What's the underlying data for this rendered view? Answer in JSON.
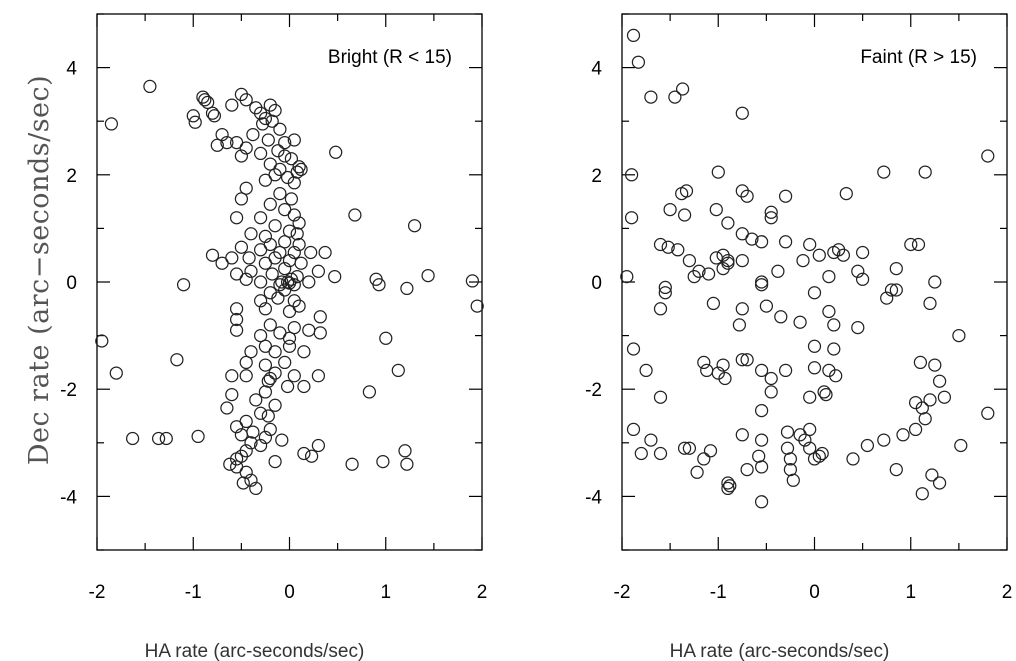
{
  "figure": {
    "ylabel": "Dec rate (arc−seconds/sec)"
  },
  "chart_data": [
    {
      "type": "scatter",
      "title": "Bright (R < 15)",
      "xlabel": "HA rate (arc-seconds/sec)",
      "ylabel": "Dec rate (arc−seconds/sec)",
      "xlim": [
        -2,
        2
      ],
      "ylim": [
        -5,
        5
      ],
      "xticks": [
        "-2",
        "-1",
        "0",
        "1",
        "2"
      ],
      "yticks": [
        "-4",
        "-2",
        "0",
        "2",
        "4"
      ],
      "xtick_values": [
        -2,
        -1,
        0,
        1,
        2
      ],
      "ytick_values": [
        -4,
        -2,
        0,
        2,
        4
      ],
      "grid": false,
      "points": [
        [
          -1.45,
          3.65
        ],
        [
          -1.85,
          2.95
        ],
        [
          -0.9,
          3.45
        ],
        [
          -0.88,
          3.4
        ],
        [
          -0.85,
          3.35
        ],
        [
          -1.0,
          3.1
        ],
        [
          -0.98,
          2.98
        ],
        [
          -0.78,
          3.1
        ],
        [
          -0.8,
          3.15
        ],
        [
          -0.5,
          3.5
        ],
        [
          -0.45,
          3.4
        ],
        [
          -0.6,
          3.3
        ],
        [
          -0.35,
          3.25
        ],
        [
          -0.3,
          3.15
        ],
        [
          -0.2,
          3.3
        ],
        [
          -0.15,
          3.2
        ],
        [
          -0.25,
          3.05
        ],
        [
          -0.28,
          2.95
        ],
        [
          -0.18,
          3.0
        ],
        [
          -0.7,
          2.75
        ],
        [
          -0.65,
          2.6
        ],
        [
          -0.75,
          2.55
        ],
        [
          -0.55,
          2.6
        ],
        [
          -0.45,
          2.5
        ],
        [
          -0.38,
          2.75
        ],
        [
          -0.1,
          2.85
        ],
        [
          -0.22,
          2.65
        ],
        [
          -0.05,
          2.6
        ],
        [
          0.05,
          2.65
        ],
        [
          -0.3,
          2.4
        ],
        [
          -0.12,
          2.45
        ],
        [
          -0.05,
          2.35
        ],
        [
          0.02,
          2.3
        ],
        [
          -0.5,
          2.35
        ],
        [
          -0.2,
          2.2
        ],
        [
          0.1,
          2.15
        ],
        [
          -0.1,
          2.1
        ],
        [
          0.08,
          2.05
        ],
        [
          0.12,
          2.1
        ],
        [
          -0.15,
          2.0
        ],
        [
          0.48,
          2.42
        ],
        [
          -0.02,
          1.95
        ],
        [
          0.05,
          1.85
        ],
        [
          -0.25,
          1.9
        ],
        [
          -0.45,
          1.75
        ],
        [
          -0.1,
          1.65
        ],
        [
          0.02,
          1.55
        ],
        [
          -0.5,
          1.55
        ],
        [
          -0.2,
          1.45
        ],
        [
          -0.05,
          1.35
        ],
        [
          0.05,
          1.25
        ],
        [
          -0.3,
          1.2
        ],
        [
          -0.55,
          1.2
        ],
        [
          0.1,
          1.1
        ],
        [
          -0.15,
          1.05
        ],
        [
          0.0,
          0.95
        ],
        [
          0.08,
          0.9
        ],
        [
          -0.25,
          0.85
        ],
        [
          -0.4,
          0.9
        ],
        [
          0.68,
          1.25
        ],
        [
          1.3,
          1.05
        ],
        [
          -0.05,
          0.75
        ],
        [
          -0.2,
          0.7
        ],
        [
          0.1,
          0.7
        ],
        [
          -0.5,
          0.65
        ],
        [
          -0.3,
          0.6
        ],
        [
          -0.1,
          0.55
        ],
        [
          0.05,
          0.55
        ],
        [
          0.22,
          0.55
        ],
        [
          0.37,
          0.55
        ],
        [
          -0.8,
          0.5
        ],
        [
          -0.6,
          0.45
        ],
        [
          -0.42,
          0.45
        ],
        [
          -0.15,
          0.45
        ],
        [
          0.0,
          0.4
        ],
        [
          -0.7,
          0.35
        ],
        [
          -0.25,
          0.35
        ],
        [
          0.12,
          0.35
        ],
        [
          -0.05,
          0.25
        ],
        [
          -0.4,
          0.2
        ],
        [
          0.3,
          0.2
        ],
        [
          -0.55,
          0.15
        ],
        [
          -0.18,
          0.15
        ],
        [
          0.08,
          0.1
        ],
        [
          0.02,
          0.05
        ],
        [
          -0.08,
          0.0
        ],
        [
          0.0,
          -0.02
        ],
        [
          -0.02,
          0.0
        ],
        [
          0.05,
          -0.05
        ],
        [
          -0.1,
          -0.05
        ],
        [
          -0.3,
          0.0
        ],
        [
          -0.45,
          0.05
        ],
        [
          -1.1,
          -0.05
        ],
        [
          0.2,
          0.0
        ],
        [
          0.47,
          0.1
        ],
        [
          0.9,
          0.05
        ],
        [
          0.93,
          -0.05
        ],
        [
          1.22,
          -0.12
        ],
        [
          1.44,
          0.12
        ],
        [
          1.9,
          0.02
        ],
        [
          1.95,
          -0.45
        ],
        [
          -0.05,
          -0.15
        ],
        [
          -0.2,
          -0.2
        ],
        [
          -0.12,
          -0.3
        ],
        [
          0.05,
          -0.35
        ],
        [
          -0.3,
          -0.35
        ],
        [
          -0.55,
          -0.5
        ],
        [
          -0.25,
          -0.5
        ],
        [
          0.0,
          -0.55
        ],
        [
          0.1,
          -0.45
        ],
        [
          0.32,
          -0.65
        ],
        [
          0.32,
          -0.95
        ],
        [
          -0.55,
          -0.7
        ],
        [
          -0.55,
          -0.9
        ],
        [
          -0.2,
          -0.8
        ],
        [
          -0.1,
          -0.95
        ],
        [
          -0.3,
          -1.0
        ],
        [
          0.05,
          -0.85
        ],
        [
          -0.25,
          -1.2
        ],
        [
          -0.15,
          -1.3
        ],
        [
          -0.4,
          -1.3
        ],
        [
          0.0,
          -1.2
        ],
        [
          0.15,
          -1.3
        ],
        [
          -1.95,
          -1.1
        ],
        [
          -1.17,
          -1.45
        ],
        [
          -0.45,
          -1.5
        ],
        [
          -0.25,
          -1.55
        ],
        [
          -0.05,
          -1.5
        ],
        [
          -0.15,
          -1.7
        ],
        [
          -0.2,
          -1.8
        ],
        [
          -0.22,
          -1.85
        ],
        [
          -0.45,
          -1.75
        ],
        [
          -0.6,
          -1.75
        ],
        [
          0.05,
          -1.75
        ],
        [
          0.3,
          -1.75
        ],
        [
          0.15,
          -1.95
        ],
        [
          -0.02,
          -1.95
        ],
        [
          -0.25,
          -2.05
        ],
        [
          -0.6,
          -2.1
        ],
        [
          -0.35,
          -2.2
        ],
        [
          -0.15,
          -2.3
        ],
        [
          -0.3,
          -2.45
        ],
        [
          -0.65,
          -2.35
        ],
        [
          -0.22,
          -2.5
        ],
        [
          -0.45,
          -2.6
        ],
        [
          -0.55,
          -2.7
        ],
        [
          -0.38,
          -2.8
        ],
        [
          -0.5,
          -2.85
        ],
        [
          -0.25,
          -2.9
        ],
        [
          -0.4,
          -3.0
        ],
        [
          -0.3,
          -3.05
        ],
        [
          -0.2,
          -2.75
        ],
        [
          -0.45,
          -3.15
        ],
        [
          -0.5,
          -3.25
        ],
        [
          -0.55,
          -3.3
        ],
        [
          -0.62,
          -3.4
        ],
        [
          -0.55,
          -3.45
        ],
        [
          -0.45,
          -3.55
        ],
        [
          -0.4,
          -3.7
        ],
        [
          -0.48,
          -3.75
        ],
        [
          -0.35,
          -3.85
        ],
        [
          -0.15,
          -3.35
        ],
        [
          0.15,
          -3.2
        ],
        [
          0.23,
          -3.25
        ],
        [
          -0.08,
          -2.95
        ],
        [
          0.3,
          -3.05
        ],
        [
          0.65,
          -3.4
        ],
        [
          0.97,
          -3.35
        ],
        [
          1.2,
          -3.15
        ],
        [
          1.22,
          -3.4
        ],
        [
          1.13,
          -1.65
        ],
        [
          0.83,
          -2.05
        ],
        [
          1.0,
          -1.05
        ],
        [
          -1.28,
          -2.92
        ],
        [
          -1.36,
          -2.92
        ],
        [
          -1.63,
          -2.92
        ],
        [
          -0.95,
          -2.88
        ],
        [
          -1.8,
          -1.7
        ],
        [
          0.0,
          -1.05
        ],
        [
          0.2,
          -0.9
        ]
      ]
    },
    {
      "type": "scatter",
      "title": "Faint (R > 15)",
      "xlabel": "HA rate (arc-seconds/sec)",
      "xlim": [
        -2,
        2
      ],
      "ylim": [
        -5,
        5
      ],
      "xticks": [
        "-2",
        "-1",
        "0",
        "1",
        "2"
      ],
      "yticks": [
        "-4",
        "-2",
        "0",
        "2",
        "4"
      ],
      "xtick_values": [
        -2,
        -1,
        0,
        1,
        2
      ],
      "ytick_values": [
        -4,
        -2,
        0,
        2,
        4
      ],
      "grid": false,
      "points": [
        [
          -1.88,
          4.6
        ],
        [
          -1.83,
          4.1
        ],
        [
          -1.7,
          3.45
        ],
        [
          -1.45,
          3.45
        ],
        [
          -1.37,
          3.6
        ],
        [
          -0.75,
          3.15
        ],
        [
          -1.9,
          2.0
        ],
        [
          -1.9,
          1.2
        ],
        [
          -1.33,
          1.7
        ],
        [
          -1.38,
          1.65
        ],
        [
          -1.5,
          1.35
        ],
        [
          -1.35,
          1.25
        ],
        [
          -1.0,
          2.05
        ],
        [
          -1.02,
          1.35
        ],
        [
          -0.75,
          1.7
        ],
        [
          -0.7,
          1.6
        ],
        [
          -0.45,
          1.2
        ],
        [
          -0.45,
          1.3
        ],
        [
          -0.3,
          1.6
        ],
        [
          0.33,
          1.65
        ],
        [
          0.72,
          2.05
        ],
        [
          1.15,
          2.05
        ],
        [
          1.8,
          2.35
        ],
        [
          -0.9,
          1.1
        ],
        [
          -0.75,
          0.9
        ],
        [
          -0.65,
          0.8
        ],
        [
          -0.55,
          0.75
        ],
        [
          -0.3,
          0.75
        ],
        [
          -0.05,
          0.7
        ],
        [
          0.25,
          0.6
        ],
        [
          0.2,
          0.55
        ],
        [
          0.3,
          0.5
        ],
        [
          0.5,
          0.55
        ],
        [
          1.0,
          0.7
        ],
        [
          1.08,
          0.7
        ],
        [
          -1.6,
          0.7
        ],
        [
          -1.52,
          0.65
        ],
        [
          -1.42,
          0.6
        ],
        [
          -1.3,
          0.4
        ],
        [
          -1.02,
          0.45
        ],
        [
          -0.95,
          0.5
        ],
        [
          -0.9,
          0.4
        ],
        [
          -0.9,
          0.35
        ],
        [
          -0.75,
          0.4
        ],
        [
          -0.95,
          0.25
        ],
        [
          -1.1,
          0.15
        ],
        [
          -1.25,
          0.1
        ],
        [
          -1.2,
          0.2
        ],
        [
          -1.55,
          -0.1
        ],
        [
          -1.55,
          -0.2
        ],
        [
          -1.95,
          0.1
        ],
        [
          -0.55,
          0.0
        ],
        [
          -0.55,
          -0.05
        ],
        [
          -0.38,
          0.2
        ],
        [
          -0.12,
          0.4
        ],
        [
          0.05,
          0.5
        ],
        [
          0.15,
          0.1
        ],
        [
          0.45,
          0.2
        ],
        [
          0.5,
          0.05
        ],
        [
          0.85,
          0.25
        ],
        [
          0.8,
          -0.15
        ],
        [
          0.75,
          -0.3
        ],
        [
          0.85,
          -0.15
        ],
        [
          1.25,
          0.0
        ],
        [
          -1.6,
          -0.5
        ],
        [
          -1.05,
          -0.4
        ],
        [
          -0.75,
          -0.5
        ],
        [
          -0.78,
          -0.8
        ],
        [
          -0.5,
          -0.45
        ],
        [
          -0.35,
          -0.65
        ],
        [
          -0.15,
          -0.75
        ],
        [
          0.0,
          -0.2
        ],
        [
          0.15,
          -0.55
        ],
        [
          0.2,
          -0.8
        ],
        [
          0.45,
          -0.85
        ],
        [
          1.2,
          -0.4
        ],
        [
          1.5,
          -1.0
        ],
        [
          -1.88,
          -1.25
        ],
        [
          -1.15,
          -1.5
        ],
        [
          -1.12,
          -1.65
        ],
        [
          -1.0,
          -1.7
        ],
        [
          -0.95,
          -1.55
        ],
        [
          -0.93,
          -1.8
        ],
        [
          -0.75,
          -1.45
        ],
        [
          -0.55,
          -1.65
        ],
        [
          -0.45,
          -1.8
        ],
        [
          -0.45,
          -2.05
        ],
        [
          -0.55,
          -2.4
        ],
        [
          0.0,
          -1.6
        ],
        [
          0.15,
          -1.65
        ],
        [
          0.22,
          -1.75
        ],
        [
          0.2,
          -1.25
        ],
        [
          0.1,
          -2.05
        ],
        [
          0.12,
          -2.1
        ],
        [
          -0.05,
          -2.15
        ],
        [
          1.1,
          -1.5
        ],
        [
          1.25,
          -1.55
        ],
        [
          1.3,
          -1.85
        ],
        [
          1.35,
          -2.15
        ],
        [
          1.2,
          -2.2
        ],
        [
          1.05,
          -2.25
        ],
        [
          1.12,
          -2.35
        ],
        [
          1.15,
          -2.55
        ],
        [
          1.05,
          -2.75
        ],
        [
          0.92,
          -2.85
        ],
        [
          -1.75,
          -1.65
        ],
        [
          -1.6,
          -2.15
        ],
        [
          -1.88,
          -2.75
        ],
        [
          -1.8,
          -3.2
        ],
        [
          -1.7,
          -2.95
        ],
        [
          -1.6,
          -3.2
        ],
        [
          -1.35,
          -3.1
        ],
        [
          -1.3,
          -3.1
        ],
        [
          -1.22,
          -3.55
        ],
        [
          -1.15,
          -3.3
        ],
        [
          -1.08,
          -3.15
        ],
        [
          -0.9,
          -3.75
        ],
        [
          -0.88,
          -3.8
        ],
        [
          -0.9,
          -3.85
        ],
        [
          -0.75,
          -2.85
        ],
        [
          -0.7,
          -3.5
        ],
        [
          -0.58,
          -3.25
        ],
        [
          -0.55,
          -2.95
        ],
        [
          -0.55,
          -3.45
        ],
        [
          -0.55,
          -4.1
        ],
        [
          -0.28,
          -2.8
        ],
        [
          -0.28,
          -3.1
        ],
        [
          -0.25,
          -3.3
        ],
        [
          -0.25,
          -3.5
        ],
        [
          -0.22,
          -3.7
        ],
        [
          -0.15,
          -2.85
        ],
        [
          -0.1,
          -2.95
        ],
        [
          -0.05,
          -2.75
        ],
        [
          -0.05,
          -3.1
        ],
        [
          0.0,
          -3.3
        ],
        [
          0.05,
          -3.25
        ],
        [
          0.08,
          -3.2
        ],
        [
          0.4,
          -3.3
        ],
        [
          0.55,
          -3.05
        ],
        [
          0.72,
          -2.95
        ],
        [
          0.85,
          -3.5
        ],
        [
          1.12,
          -3.95
        ],
        [
          1.22,
          -3.6
        ],
        [
          1.3,
          -3.75
        ],
        [
          1.52,
          -3.05
        ],
        [
          1.8,
          -2.45
        ],
        [
          0.0,
          -1.2
        ],
        [
          -0.7,
          -1.45
        ],
        [
          -0.3,
          -1.65
        ]
      ]
    }
  ]
}
